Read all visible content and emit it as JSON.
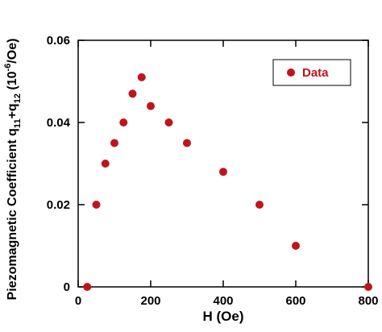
{
  "chart_data": {
    "type": "scatter",
    "xlabel": "H (Oe)",
    "ylabel": [
      {
        "text": "Piezomagnetic Coefficient  q"
      },
      {
        "text": "11",
        "shift": "sub"
      },
      {
        "text": "+q"
      },
      {
        "text": "12",
        "shift": "sub"
      },
      {
        "text": " (10"
      },
      {
        "text": "-6",
        "shift": "super"
      },
      {
        "text": "/Oe)"
      }
    ],
    "series": [
      {
        "name": "Data",
        "color": "#c0141c",
        "x": [
          25,
          50,
          75,
          100,
          125,
          150,
          175,
          200,
          250,
          300,
          400,
          500,
          600,
          800
        ],
        "values": [
          0,
          0.02,
          0.03,
          0.035,
          0.04,
          0.047,
          0.051,
          0.044,
          0.04,
          0.035,
          0.028,
          0.02,
          0.01,
          0
        ]
      }
    ],
    "xlim": [
      0,
      800
    ],
    "xticks": [
      0,
      200,
      400,
      600,
      800
    ],
    "ylim": [
      0,
      0.06
    ],
    "yticks": [
      0,
      0.02,
      0.04,
      0.06
    ],
    "legend": "upper right"
  }
}
